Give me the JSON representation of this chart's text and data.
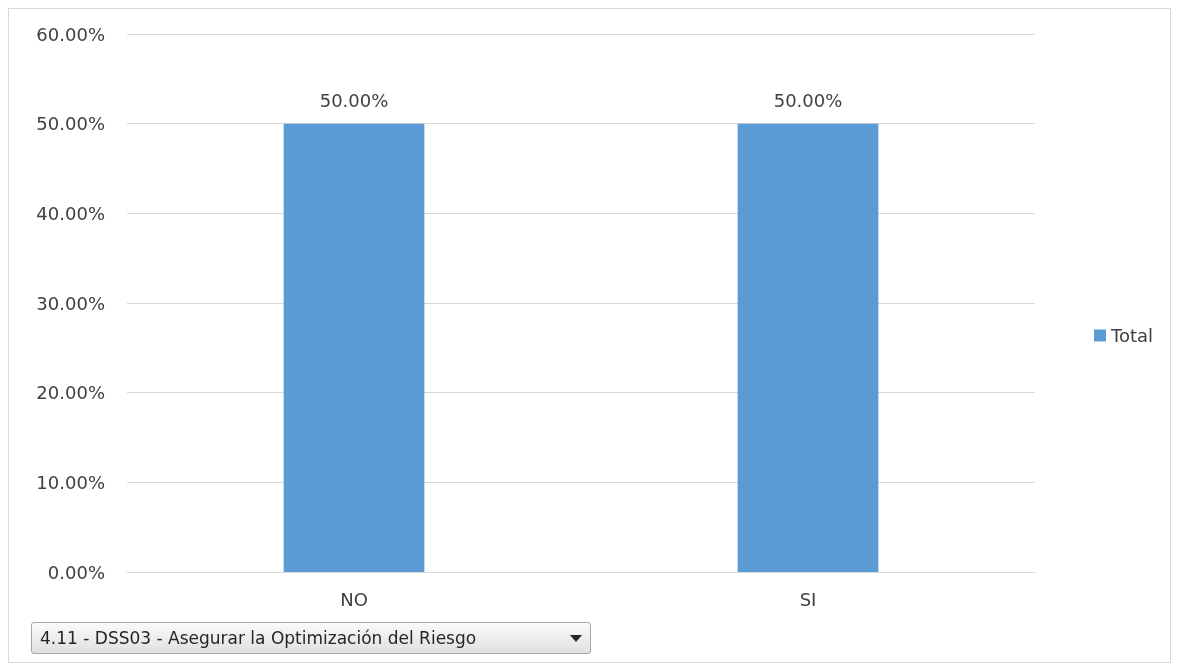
{
  "chart_data": {
    "type": "bar",
    "categories": [
      "NO",
      "SI"
    ],
    "series": [
      {
        "name": "Total",
        "color": "#5b9bd5",
        "values": [
          50,
          50
        ],
        "value_labels": [
          "50.00%",
          "50.00%"
        ]
      }
    ],
    "ylim": [
      0,
      60
    ],
    "yticks": [
      {
        "value": 0,
        "label": "0.00%"
      },
      {
        "value": 10,
        "label": "10.00%"
      },
      {
        "value": 20,
        "label": "20.00%"
      },
      {
        "value": 30,
        "label": "30.00%"
      },
      {
        "value": 40,
        "label": "40.00%"
      },
      {
        "value": 50,
        "label": "50.00%"
      },
      {
        "value": 60,
        "label": "60.00%"
      }
    ],
    "grid": "y",
    "legend": "right",
    "annotations": [
      "4.11 - DSS03 - Asegurar la Optimización del Riesgo"
    ]
  }
}
